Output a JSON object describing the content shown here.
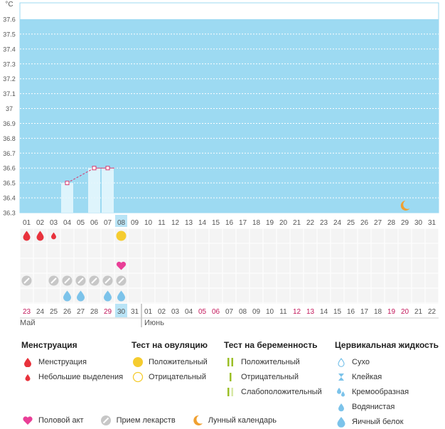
{
  "chart_data": {
    "type": "line",
    "yunit": "°С",
    "y_ticks": [
      "37.6",
      "37.5",
      "37.4",
      "37.3",
      "37.2",
      "37.1",
      "37",
      "36.9",
      "36.8",
      "36.7",
      "36.6",
      "36.5",
      "36.4",
      "36.3"
    ],
    "ylim": [
      36.3,
      37.6
    ],
    "cycle_days": [
      "01",
      "02",
      "03",
      "04",
      "05",
      "06",
      "07",
      "08",
      "09",
      "10",
      "11",
      "12",
      "13",
      "14",
      "15",
      "16",
      "17",
      "18",
      "19",
      "20",
      "21",
      "22",
      "23",
      "24",
      "25",
      "26",
      "27",
      "28",
      "29",
      "30",
      "31"
    ],
    "highlight_day": "08",
    "temperature": [
      {
        "day": "04",
        "value": 36.5
      },
      {
        "day": "06",
        "value": 36.6
      },
      {
        "day": "07",
        "value": 36.6
      }
    ],
    "moon_day": "29"
  },
  "events": {
    "menstruation": {
      "01": "large",
      "02": "large",
      "03": "small"
    },
    "ovulation_positive": [
      "08"
    ],
    "sex": [
      "08"
    ],
    "medicine": [
      "01",
      "03",
      "04",
      "05",
      "06",
      "07",
      "08"
    ],
    "fluid": [
      "04",
      "05",
      "07",
      "08"
    ]
  },
  "calendar": {
    "dates": [
      {
        "d": "23",
        "red": true
      },
      {
        "d": "24"
      },
      {
        "d": "25"
      },
      {
        "d": "26"
      },
      {
        "d": "27"
      },
      {
        "d": "28"
      },
      {
        "d": "29",
        "red": true
      },
      {
        "d": "30",
        "today": true
      },
      {
        "d": "31"
      },
      {
        "d": "01"
      },
      {
        "d": "02"
      },
      {
        "d": "03"
      },
      {
        "d": "04"
      },
      {
        "d": "05",
        "red": true
      },
      {
        "d": "06",
        "red": true
      },
      {
        "d": "07"
      },
      {
        "d": "08"
      },
      {
        "d": "09"
      },
      {
        "d": "10"
      },
      {
        "d": "11"
      },
      {
        "d": "12",
        "red": true
      },
      {
        "d": "13",
        "red": true
      },
      {
        "d": "14"
      },
      {
        "d": "15"
      },
      {
        "d": "16"
      },
      {
        "d": "17"
      },
      {
        "d": "18"
      },
      {
        "d": "19",
        "red": true
      },
      {
        "d": "20",
        "red": true
      },
      {
        "d": "21"
      },
      {
        "d": "22"
      }
    ],
    "month1": "Май",
    "month2": "Июнь"
  },
  "legend": {
    "menstruation": {
      "title": "Менструация",
      "items": [
        "Менструация",
        "Небольшие выделения"
      ]
    },
    "ovulation": {
      "title": "Тест на овуляцию",
      "items": [
        "Положительный",
        "Отрицательный"
      ]
    },
    "pregnancy": {
      "title": "Тест на беременность",
      "items": [
        "Положительный",
        "Отрицательный",
        "Слабоположительный"
      ]
    },
    "fluid": {
      "title": "Цервикальная жидкость",
      "items": [
        "Сухо",
        "Клейкая",
        "Кремообразная",
        "Водянистая",
        "Яичный белок"
      ]
    },
    "bottom": [
      "Половой акт",
      "Прием лекарств",
      "Лунный календарь"
    ]
  },
  "colors": {
    "plot_bg": "#9ddaf2",
    "grid": "#ffffff",
    "red_day": "#c2185b",
    "menstruation": "#e8323c",
    "ovulation": "#f5cc2f",
    "sex": "#e93f97",
    "fluid": "#7cc3ea",
    "medicine": "#c7c7c7",
    "moon": "#f0a030",
    "line": "#d7356b",
    "pregnancy": "#9bbf26"
  }
}
